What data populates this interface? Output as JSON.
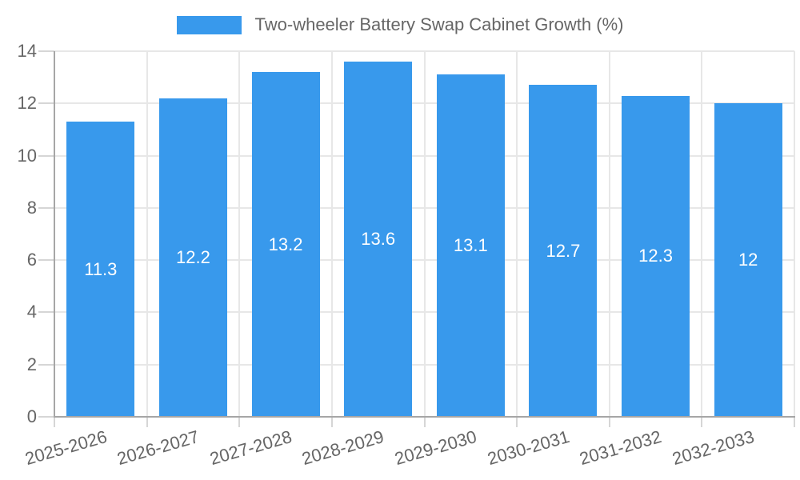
{
  "chart_data": {
    "type": "bar",
    "title": "",
    "series_name": "Two-wheeler Battery Swap Cabinet Growth (%)",
    "categories": [
      "2025-2026",
      "2026-2027",
      "2027-2028",
      "2028-2029",
      "2029-2030",
      "2030-2031",
      "2031-2032",
      "2032-2033"
    ],
    "values": [
      11.3,
      12.2,
      13.2,
      13.6,
      13.1,
      12.7,
      12.3,
      12
    ],
    "data_labels": [
      "11.3",
      "12.2",
      "13.2",
      "13.6",
      "13.1",
      "12.7",
      "12.3",
      "12"
    ],
    "xlabel": "",
    "ylabel": "",
    "ylim": [
      0,
      14
    ],
    "yticks": [
      0,
      2,
      4,
      6,
      8,
      10,
      12,
      14
    ],
    "grid": true,
    "legend_position": "top",
    "bar_color": "#3899ec",
    "data_label_color": "#ffffff",
    "axis_text_color": "#666666",
    "gridline_color": "#e7e7e7",
    "tick_color": "#d6d6d6",
    "axis_line_color": "#a6a6a6",
    "background_color": "#ffffff"
  }
}
